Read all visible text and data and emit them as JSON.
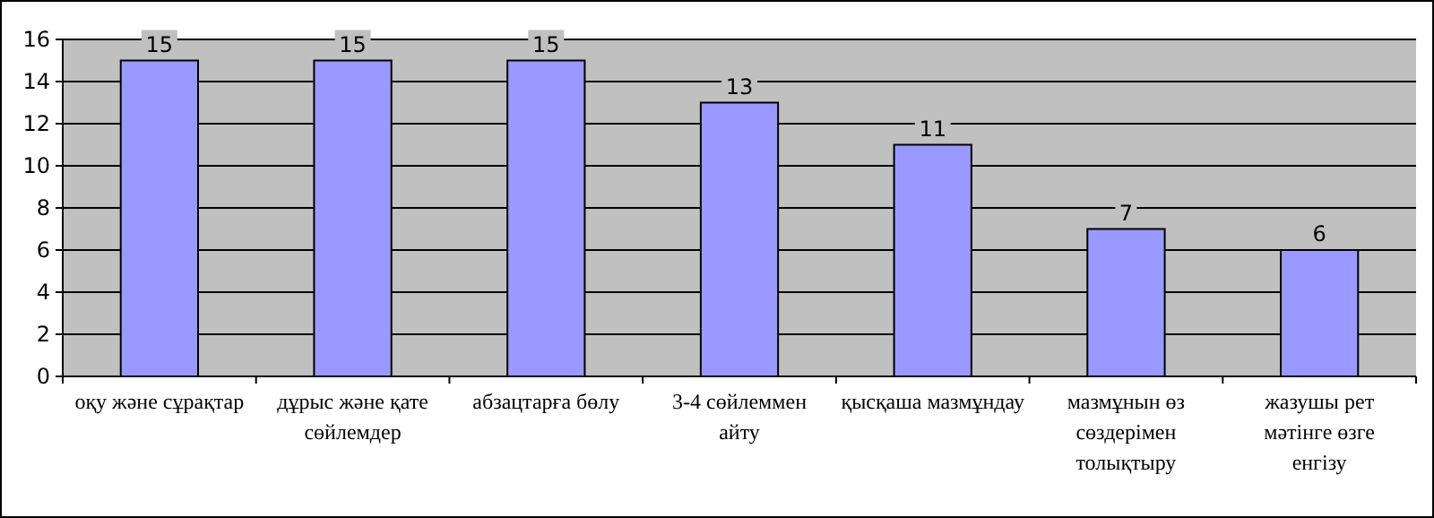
{
  "chart_data": {
    "type": "bar",
    "categories": [
      "оқу және сұрақтар",
      "дұрыс және қате сөйлемдер",
      "абзацтарға бөлу",
      "3-4 сөйлеммен айту",
      "қысқаша мазмұндау",
      "мазмұнын өз сөздерімен толықтыру",
      "жазушы рет мәтінге өзге енгізу"
    ],
    "values": [
      15,
      15,
      15,
      13,
      11,
      7,
      6
    ],
    "color": "#9999ff",
    "ylim": [
      0,
      16
    ],
    "yticks": [
      0,
      2,
      4,
      6,
      8,
      10,
      12,
      14,
      16
    ],
    "grid": "y",
    "data_labels": true
  }
}
